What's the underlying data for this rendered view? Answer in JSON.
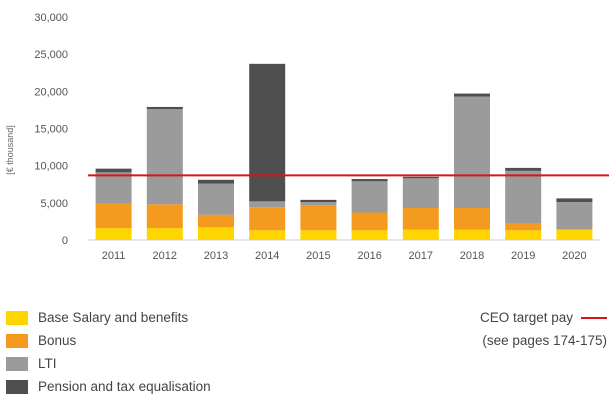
{
  "chart_data": {
    "type": "bar",
    "stacked": true,
    "categories": [
      "2011",
      "2012",
      "2013",
      "2014",
      "2015",
      "2016",
      "2017",
      "2018",
      "2019",
      "2020"
    ],
    "series": [
      {
        "name": "Base Salary and benefits",
        "color": "#ffd500",
        "values": [
          1600,
          1600,
          1700,
          1300,
          1300,
          1300,
          1400,
          1400,
          1300,
          1400
        ]
      },
      {
        "name": "Bonus",
        "color": "#f39a1f",
        "values": [
          3300,
          3200,
          1700,
          3100,
          3400,
          2400,
          2900,
          2900,
          900,
          0
        ]
      },
      {
        "name": "LTI",
        "color": "#9b9b9b",
        "values": [
          4200,
          12800,
          4200,
          800,
          400,
          4200,
          4000,
          15000,
          7100,
          3700
        ]
      },
      {
        "name": "Pension and tax equalisation",
        "color": "#4f4f4f",
        "values": [
          500,
          300,
          500,
          18500,
          300,
          300,
          200,
          400,
          400,
          500
        ]
      }
    ],
    "reference_line": {
      "name": "CEO target pay",
      "value": 8700,
      "color": "#d7141a"
    },
    "ylabel": "[€ thousand]",
    "ylim": [
      0,
      30000
    ],
    "yticks": [
      0,
      5000,
      10000,
      15000,
      20000,
      25000,
      30000
    ],
    "ytick_labels": [
      "0",
      "5,000",
      "10,000",
      "15,000",
      "20,000",
      "25,000",
      "30,000"
    ],
    "grid": false,
    "legend_position": "bottom"
  },
  "legend": {
    "items": [
      {
        "label": "Base Salary and benefits",
        "color": "#ffd500"
      },
      {
        "label": "Bonus",
        "color": "#f39a1f"
      },
      {
        "label": "LTI",
        "color": "#9b9b9b"
      },
      {
        "label": "Pension and tax equalisation",
        "color": "#4f4f4f"
      }
    ],
    "target_label": "CEO target pay",
    "target_note": "(see pages 174-175)",
    "target_color": "#d7141a"
  }
}
